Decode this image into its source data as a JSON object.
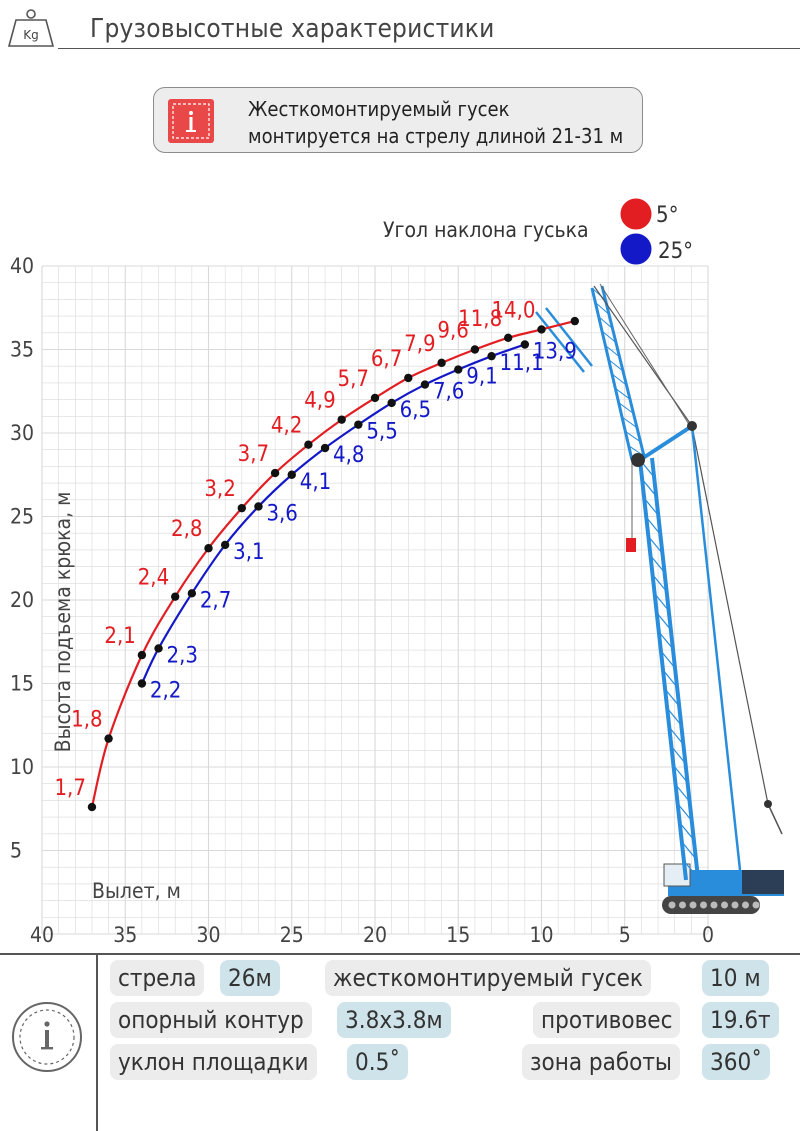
{
  "header": {
    "title": "Грузовысотные характеристики",
    "weight_icon_text": "Kg"
  },
  "notice": {
    "line1": "Жесткомонтируемый гусек",
    "line2": "монтируется на стрелу длиной 21-31 м"
  },
  "colors": {
    "series_5": "#e21e23",
    "series_25": "#1419c8",
    "crane": "#2a8ddb",
    "grid": "#d9d9d9"
  },
  "chart_data": {
    "type": "line",
    "xlabel": "Вылет, м",
    "ylabel": "Высота подъема крюка, м",
    "xlim": [
      40,
      0
    ],
    "ylim": [
      0,
      40
    ],
    "x_ticks": [
      40,
      35,
      30,
      25,
      20,
      15,
      10,
      5,
      0
    ],
    "y_ticks": [
      5,
      10,
      15,
      20,
      25,
      30,
      35,
      40
    ],
    "grid": true,
    "legend": {
      "title": "Угол наклона гуська",
      "placement": "top-right"
    },
    "series": [
      {
        "name": "5°",
        "color": "#e21e23",
        "points": [
          {
            "x": 37,
            "y": 7.6,
            "label": "1,7"
          },
          {
            "x": 36,
            "y": 11.7,
            "label": "1,8"
          },
          {
            "x": 34,
            "y": 16.7,
            "label": "2,1"
          },
          {
            "x": 32,
            "y": 20.2,
            "label": "2,4"
          },
          {
            "x": 30,
            "y": 23.1,
            "label": "2,8"
          },
          {
            "x": 28,
            "y": 25.5,
            "label": "3,2"
          },
          {
            "x": 26,
            "y": 27.6,
            "label": "3,7"
          },
          {
            "x": 24,
            "y": 29.3,
            "label": "4,2"
          },
          {
            "x": 22,
            "y": 30.8,
            "label": "4,9"
          },
          {
            "x": 20,
            "y": 32.1,
            "label": "5,7"
          },
          {
            "x": 18,
            "y": 33.3,
            "label": "6,7"
          },
          {
            "x": 16,
            "y": 34.2,
            "label": "7,9"
          },
          {
            "x": 14,
            "y": 35.0,
            "label": "9,6"
          },
          {
            "x": 12,
            "y": 35.7,
            "label": "11,8"
          },
          {
            "x": 10,
            "y": 36.2,
            "label": "14,0"
          }
        ],
        "end_x": 8,
        "end_y": 36.7
      },
      {
        "name": "25°",
        "color": "#1419c8",
        "points": [
          {
            "x": 34,
            "y": 15.0,
            "label": "2,2"
          },
          {
            "x": 33,
            "y": 17.1,
            "label": "2,3"
          },
          {
            "x": 31,
            "y": 20.4,
            "label": "2,7"
          },
          {
            "x": 29,
            "y": 23.3,
            "label": "3,1"
          },
          {
            "x": 27,
            "y": 25.6,
            "label": "3,6"
          },
          {
            "x": 25,
            "y": 27.5,
            "label": "4,1"
          },
          {
            "x": 23,
            "y": 29.1,
            "label": "4,8"
          },
          {
            "x": 21,
            "y": 30.5,
            "label": "5,5"
          },
          {
            "x": 19,
            "y": 31.8,
            "label": "6,5"
          },
          {
            "x": 17,
            "y": 32.9,
            "label": "7,6"
          },
          {
            "x": 15,
            "y": 33.8,
            "label": "9,1"
          },
          {
            "x": 13,
            "y": 34.6,
            "label": "11,1"
          },
          {
            "x": 11,
            "y": 35.3,
            "label": "13,9"
          }
        ]
      }
    ]
  },
  "params": {
    "boom": {
      "label": "стрела",
      "value": "26м"
    },
    "jib": {
      "label": "жесткомонтируемый гусек",
      "value": "10 м"
    },
    "outrigger": {
      "label": "опорный контур",
      "value": "3.8x3.8м"
    },
    "counterweight": {
      "label": "противовес",
      "value": "19.6т"
    },
    "slope": {
      "label": "уклон площадки",
      "value": "0.5˚"
    },
    "work_zone": {
      "label": "зона работы",
      "value": "360˚"
    }
  }
}
